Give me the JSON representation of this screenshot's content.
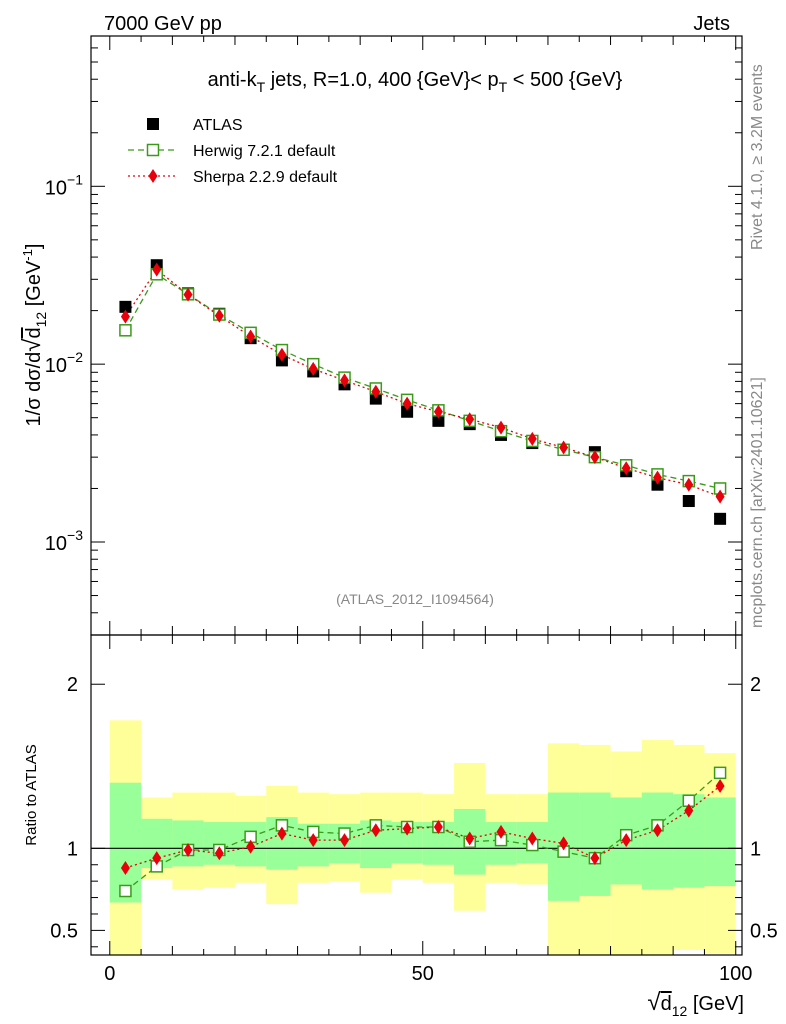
{
  "header": {
    "left": "7000 GeV pp",
    "right": "Jets"
  },
  "side_labels": {
    "rivet": "Rivet 4.1.0, ≥ 3.2M events",
    "mcplots": "mcplots.cern.ch [arXiv:2401.10621]"
  },
  "colors": {
    "data": "#000000",
    "herwig": "#3a9a1a",
    "sherpa": "#e8000b",
    "band_1sigma": "#99ff99",
    "band_2sigma": "#ffff99"
  },
  "chart_data": [
    {
      "type": "scatter",
      "scale": "log",
      "title": "anti-kT jets, R=1.0, 400 {GeV}< pT < 500 {GeV}",
      "title_parts": {
        "pre": "anti-k",
        "sub1": "T",
        "mid": " jets, R=1.0, 400 {GeV}< p",
        "sub2": "T",
        "post": " < 500 {GeV}"
      },
      "ylabel": "1/σ dσ/d√d12 [GeV^-1]",
      "ylabel_parts": {
        "pre": "1/σ dσ/d",
        "root": "d",
        "sub": "12",
        "post": " [GeV",
        "sup": "-1",
        "end": "]"
      },
      "xlim": [
        -3,
        101
      ],
      "ylim": [
        0.0003,
        0.7
      ],
      "y_ticks": [
        {
          "base": "10",
          "exp": "−1",
          "value": 0.1
        },
        {
          "base": "10",
          "exp": "−2",
          "value": 0.01
        },
        {
          "base": "10",
          "exp": "−3",
          "value": 0.001
        }
      ],
      "analysis_label": "(ATLAS_2012_I1094564)",
      "x": [
        2.5,
        7.5,
        12.5,
        17.5,
        22.5,
        27.5,
        32.5,
        37.5,
        42.5,
        47.5,
        52.5,
        57.5,
        62.5,
        67.5,
        72.5,
        77.5,
        82.5,
        87.5,
        92.5,
        97.5
      ],
      "series": [
        {
          "name": "ATLAS",
          "key": "data",
          "marker": "square-filled",
          "values": [
            0.021,
            0.036,
            0.025,
            0.0192,
            0.014,
            0.0105,
            0.0091,
            0.0077,
            0.0064,
            0.0054,
            0.0048,
            0.0046,
            0.004,
            0.0036,
            0.0033,
            0.0032,
            0.0025,
            0.0021,
            0.0017,
            0.00135
          ]
        },
        {
          "name": "Herwig 7.2.1 default",
          "key": "herwig",
          "marker": "square-open",
          "line": "dashed",
          "values": [
            0.0155,
            0.032,
            0.0247,
            0.019,
            0.015,
            0.012,
            0.01,
            0.0084,
            0.0073,
            0.0063,
            0.0055,
            0.0048,
            0.0042,
            0.0037,
            0.0033,
            0.003,
            0.0027,
            0.0024,
            0.0022,
            0.002
          ]
        },
        {
          "name": "Sherpa 2.2.9 default",
          "key": "sherpa",
          "marker": "diamond-filled",
          "line": "dotted",
          "values": [
            0.0185,
            0.034,
            0.0246,
            0.0187,
            0.0143,
            0.0113,
            0.0094,
            0.0081,
            0.007,
            0.006,
            0.0054,
            0.0049,
            0.0044,
            0.0038,
            0.0034,
            0.003,
            0.0026,
            0.0023,
            0.0021,
            0.0018
          ]
        }
      ],
      "legend": {
        "placement": "top-left"
      }
    },
    {
      "type": "scatter",
      "scale": "linear",
      "ylabel": "Ratio to ATLAS",
      "xlabel": "√d12 [GeV]",
      "xlabel_parts": {
        "root": "d",
        "sub": "12",
        "post": " [GeV]"
      },
      "xlim": [
        -3,
        101
      ],
      "ylim": [
        0.35,
        2.3
      ],
      "x_ticks": [
        0,
        50,
        100
      ],
      "y_ticks": [
        0.5,
        1,
        2
      ],
      "reference_line": 1,
      "x": [
        2.5,
        7.5,
        12.5,
        17.5,
        22.5,
        27.5,
        32.5,
        37.5,
        42.5,
        47.5,
        52.5,
        57.5,
        62.5,
        67.5,
        72.5,
        77.5,
        82.5,
        87.5,
        92.5,
        97.5
      ],
      "bins": [
        [
          0,
          5
        ],
        [
          5,
          10
        ],
        [
          10,
          15
        ],
        [
          15,
          20
        ],
        [
          20,
          25
        ],
        [
          25,
          30
        ],
        [
          30,
          35
        ],
        [
          35,
          40
        ],
        [
          40,
          45
        ],
        [
          45,
          50
        ],
        [
          50,
          55
        ],
        [
          55,
          60
        ],
        [
          60,
          65
        ],
        [
          65,
          70
        ],
        [
          70,
          75
        ],
        [
          75,
          80
        ],
        [
          80,
          85
        ],
        [
          85,
          90
        ],
        [
          90,
          95
        ],
        [
          95,
          100
        ]
      ],
      "band_1sigma": {
        "low": [
          0.67,
          0.88,
          0.89,
          0.9,
          0.89,
          0.87,
          0.89,
          0.91,
          0.88,
          0.91,
          0.9,
          0.84,
          0.9,
          0.91,
          0.68,
          0.71,
          0.78,
          0.75,
          0.76,
          0.77
        ],
        "high": [
          1.4,
          1.18,
          1.17,
          1.16,
          1.16,
          1.19,
          1.15,
          1.15,
          1.17,
          1.16,
          1.16,
          1.24,
          1.16,
          1.16,
          1.34,
          1.34,
          1.31,
          1.34,
          1.33,
          1.31
        ]
      },
      "band_2sigma": {
        "low": [
          0.35,
          0.81,
          0.75,
          0.76,
          0.79,
          0.66,
          0.79,
          0.8,
          0.73,
          0.81,
          0.79,
          0.62,
          0.79,
          0.78,
          0.35,
          0.35,
          0.35,
          0.35,
          0.38,
          0.36
        ],
        "high": [
          1.78,
          1.31,
          1.34,
          1.34,
          1.32,
          1.38,
          1.34,
          1.33,
          1.34,
          1.34,
          1.33,
          1.52,
          1.33,
          1.33,
          1.64,
          1.63,
          1.59,
          1.66,
          1.63,
          1.58
        ]
      },
      "series": [
        {
          "name": "Herwig 7.2.1 default",
          "key": "herwig",
          "marker": "square-open",
          "line": "dashed",
          "values": [
            0.74,
            0.89,
            0.99,
            0.99,
            1.07,
            1.14,
            1.1,
            1.09,
            1.14,
            1.13,
            1.13,
            1.04,
            1.05,
            1.02,
            0.98,
            0.94,
            1.08,
            1.14,
            1.29,
            1.46
          ]
        },
        {
          "name": "Sherpa 2.2.9 default",
          "key": "sherpa",
          "marker": "diamond-filled",
          "line": "dotted",
          "values": [
            0.88,
            0.94,
            0.99,
            0.97,
            1.01,
            1.09,
            1.05,
            1.05,
            1.11,
            1.12,
            1.13,
            1.06,
            1.1,
            1.06,
            1.03,
            0.94,
            1.05,
            1.11,
            1.23,
            1.38
          ]
        }
      ]
    }
  ]
}
